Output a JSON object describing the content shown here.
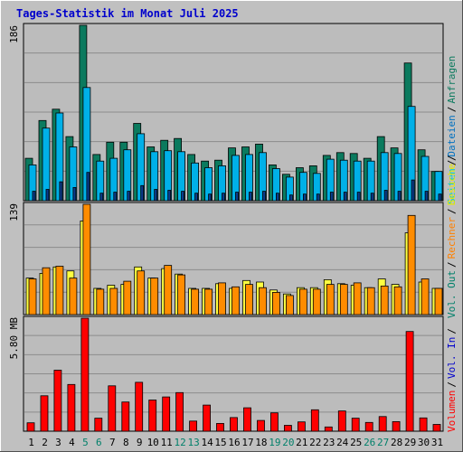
{
  "title": "Tages-Statistik im Monat Juli 2025",
  "colors": {
    "background": "#c0c0c0",
    "plot_background": "#bcbcbc",
    "grid": "#8c8c8c",
    "title": "#0000cc",
    "anfragen": "#0b7a5e",
    "dateien": "#00b0e8",
    "seiten": "#00e0f0",
    "besuche": "#ffff40",
    "rechner": "#ff8c00",
    "kbytes": "#ff0000",
    "weekend_label": "#00806a",
    "weekday_label": "#000000"
  },
  "right_labels": {
    "anfragen": "Anfragen",
    "dateien": "Dateien",
    "seiten": "Seiten",
    "besuche": "Besuche",
    "rechner": "Rechner",
    "vol_out": "Vol. Out",
    "vol_in": "Vol. In",
    "volumen": "Volumen",
    "sep": "/"
  },
  "chart_data": [
    {
      "type": "bar",
      "panel": "hits",
      "categories": [
        "1",
        "2",
        "3",
        "4",
        "5",
        "6",
        "7",
        "8",
        "9",
        "10",
        "11",
        "12",
        "13",
        "14",
        "15",
        "16",
        "17",
        "18",
        "19",
        "20",
        "21",
        "22",
        "23",
        "24",
        "25",
        "26",
        "27",
        "28",
        "29",
        "30",
        "31"
      ],
      "weekend_days": [
        "5",
        "6",
        "12",
        "13",
        "19",
        "20",
        "26",
        "27"
      ],
      "ymax_label": "186",
      "ylim": [
        0,
        186
      ],
      "grid_lines": 6,
      "series": [
        {
          "name": "Anfragen",
          "values": [
            45,
            85,
            97,
            68,
            186,
            49,
            62,
            62,
            82,
            57,
            64,
            66,
            49,
            42,
            43,
            56,
            57,
            60,
            38,
            28,
            35,
            37,
            48,
            51,
            50,
            45,
            68,
            56,
            146,
            54,
            31
          ]
        },
        {
          "name": "Dateien",
          "values": [
            38,
            77,
            93,
            57,
            120,
            42,
            45,
            54,
            71,
            52,
            53,
            52,
            40,
            35,
            37,
            48,
            49,
            51,
            34,
            25,
            30,
            29,
            44,
            43,
            42,
            42,
            51,
            50,
            100,
            47,
            31
          ]
        },
        {
          "name": "Seiten",
          "values": [
            10,
            12,
            20,
            14,
            30,
            8,
            9,
            10,
            16,
            12,
            11,
            10,
            8,
            7,
            8,
            9,
            9,
            10,
            8,
            6,
            7,
            7,
            9,
            9,
            9,
            8,
            11,
            10,
            22,
            10,
            7
          ]
        }
      ]
    },
    {
      "type": "bar",
      "panel": "visits",
      "categories": [
        "1",
        "2",
        "3",
        "4",
        "5",
        "6",
        "7",
        "8",
        "9",
        "10",
        "11",
        "12",
        "13",
        "14",
        "15",
        "16",
        "17",
        "18",
        "19",
        "20",
        "21",
        "22",
        "23",
        "24",
        "25",
        "26",
        "27",
        "28",
        "29",
        "30",
        "31"
      ],
      "ymax_label": "139",
      "ylim": [
        0,
        139
      ],
      "grid_lines": 5,
      "series": [
        {
          "name": "Besuche",
          "values": [
            46,
            52,
            60,
            55,
            118,
            33,
            37,
            38,
            60,
            46,
            58,
            51,
            33,
            33,
            39,
            33,
            43,
            41,
            31,
            26,
            34,
            34,
            44,
            39,
            37,
            34,
            45,
            38,
            103,
            41,
            33
          ]
        },
        {
          "name": "Rechner",
          "values": [
            45,
            59,
            61,
            46,
            139,
            32,
            33,
            42,
            55,
            46,
            62,
            50,
            32,
            32,
            40,
            35,
            38,
            34,
            28,
            24,
            32,
            32,
            38,
            38,
            40,
            34,
            36,
            35,
            125,
            45,
            33
          ]
        }
      ]
    },
    {
      "type": "bar",
      "panel": "volume",
      "categories": [
        "1",
        "2",
        "3",
        "4",
        "5",
        "6",
        "7",
        "8",
        "9",
        "10",
        "11",
        "12",
        "13",
        "14",
        "15",
        "16",
        "17",
        "18",
        "19",
        "20",
        "21",
        "22",
        "23",
        "24",
        "25",
        "26",
        "27",
        "28",
        "29",
        "30",
        "31"
      ],
      "ymax_label": "5.80 MB",
      "ylim": [
        0,
        5.8
      ],
      "grid_lines": 6,
      "series": [
        {
          "name": "Volumen",
          "values": [
            0.43,
            1.82,
            3.13,
            2.4,
            5.8,
            0.67,
            2.33,
            1.5,
            2.51,
            1.6,
            1.76,
            1.98,
            0.52,
            1.34,
            0.4,
            0.7,
            1.2,
            0.55,
            0.94,
            0.3,
            0.48,
            1.1,
            0.22,
            1.04,
            0.67,
            0.45,
            0.75,
            0.49,
            5.12,
            0.68,
            0.35
          ]
        }
      ]
    }
  ]
}
